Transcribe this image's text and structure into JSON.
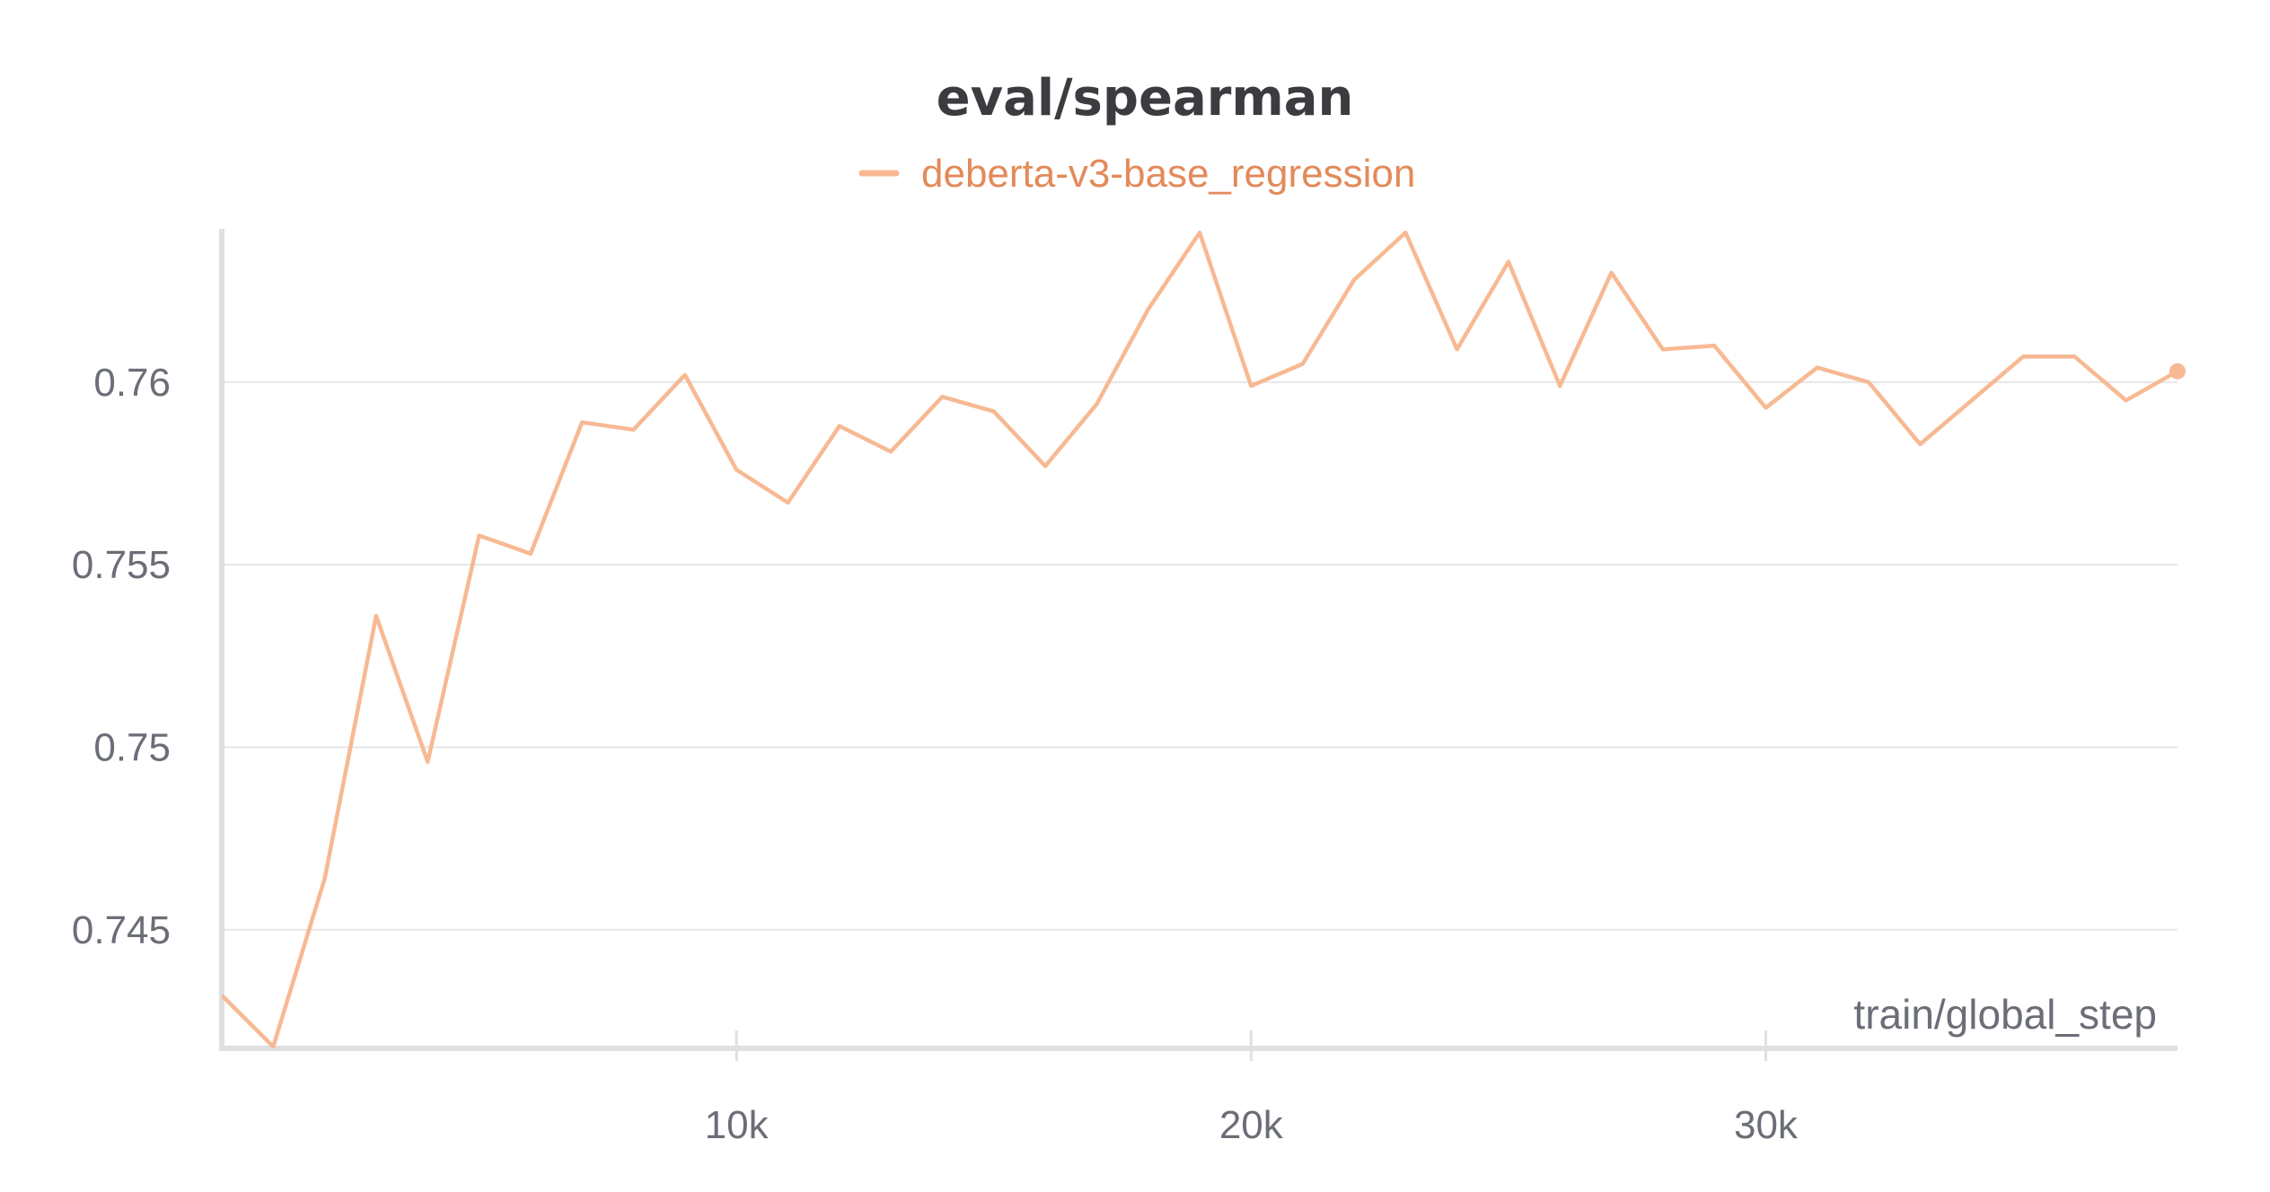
{
  "chart_data": {
    "type": "line",
    "title": "eval/spearman",
    "xlabel": "train/global_step",
    "ylabel": "",
    "xlim": [
      0,
      38000
    ],
    "ylim": [
      0.74175,
      0.7642
    ],
    "x_ticks": [
      10000,
      20000,
      30000
    ],
    "x_tick_labels": [
      "10k",
      "20k",
      "30k"
    ],
    "y_ticks": [
      0.745,
      0.75,
      0.755,
      0.76
    ],
    "y_tick_labels": [
      "0.745",
      "0.75",
      "0.755",
      "0.76"
    ],
    "grid": true,
    "legend_position": "top-center",
    "series": [
      {
        "name": "deberta-v3-base_regression",
        "color": "#f7b993",
        "x": [
          0,
          1000,
          2000,
          3000,
          4000,
          5000,
          6000,
          7000,
          8000,
          9000,
          10000,
          11000,
          12000,
          13000,
          14000,
          15000,
          16000,
          17000,
          18000,
          19000,
          20000,
          21000,
          22000,
          23000,
          24000,
          25000,
          26000,
          27000,
          28000,
          29000,
          30000,
          31000,
          32000,
          33000,
          34000,
          35000,
          36000,
          37000,
          38000
        ],
        "y": [
          0.7432,
          0.7418,
          0.7464,
          0.7536,
          0.7496,
          0.7558,
          0.7553,
          0.7589,
          0.7587,
          0.7602,
          0.7576,
          0.7567,
          0.7588,
          0.7581,
          0.7596,
          0.7592,
          0.7577,
          0.7594,
          0.762,
          0.7641,
          0.7599,
          0.7605,
          0.7628,
          0.7641,
          0.7609,
          0.7633,
          0.7599,
          0.763,
          0.7609,
          0.761,
          0.7593,
          0.7604,
          0.76,
          0.7583,
          0.7595,
          0.7607,
          0.7607,
          0.7595,
          0.7603
        ]
      }
    ]
  }
}
